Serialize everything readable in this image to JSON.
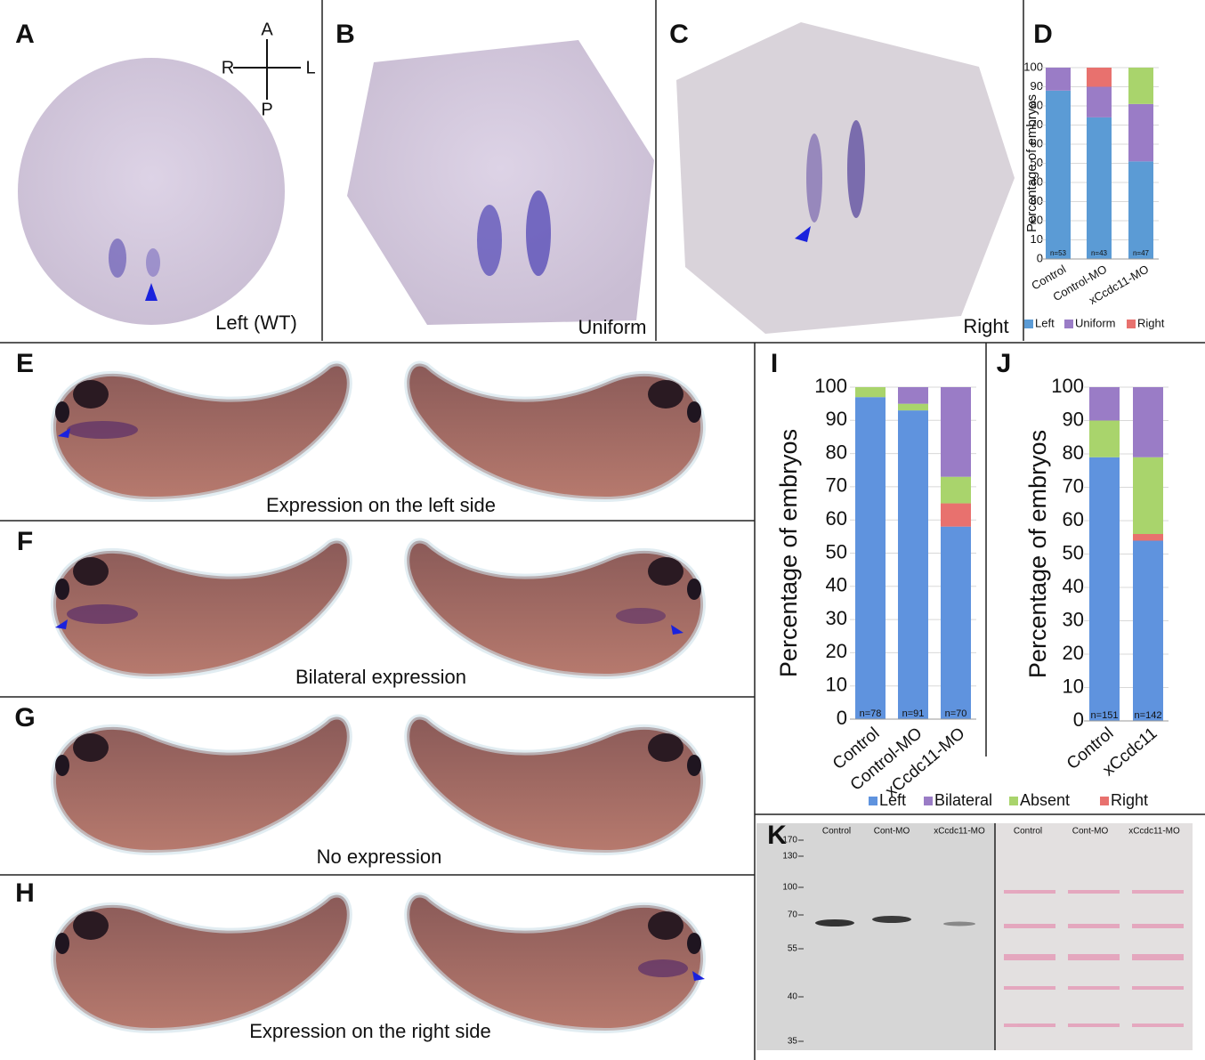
{
  "panels": [
    {
      "letter": "A",
      "caption": "Left (WT)",
      "axes": {
        "a": "A",
        "p": "P",
        "r": "R",
        "l": "L"
      }
    },
    {
      "letter": "B",
      "caption": "Uniform"
    },
    {
      "letter": "C",
      "caption": "Right"
    },
    {
      "letter": "D"
    },
    {
      "letter": "E",
      "caption": "Expression on the left side"
    },
    {
      "letter": "F",
      "caption": "Bilateral expression"
    },
    {
      "letter": "G",
      "caption": "No expression"
    },
    {
      "letter": "H",
      "caption": "Expression on the right side"
    },
    {
      "letter": "I"
    },
    {
      "letter": "J"
    },
    {
      "letter": "K"
    }
  ],
  "blot": {
    "lanes": [
      "Control",
      "Cont-MO",
      "xCcdc11-MO",
      "Control",
      "Cont-MO",
      "xCcdc11-MO"
    ],
    "markers": [
      170,
      130,
      100,
      70,
      55,
      40,
      35
    ]
  },
  "chart_data": [
    {
      "type": "bar",
      "stacked": true,
      "y_label": "Percentage of embryos",
      "categories": [
        "Control",
        "Control-MO",
        "xCcdc11-MO"
      ],
      "series": [
        {
          "name": "Left",
          "color": "#5b9bd5",
          "values": [
            88,
            74,
            51
          ]
        },
        {
          "name": "Uniform",
          "color": "#9a7cc6",
          "values": [
            12,
            16,
            30
          ]
        },
        {
          "name": "Right",
          "color": "#e8716e",
          "values": [
            0,
            10,
            0
          ]
        },
        {
          "color": "#a9d46c",
          "values": [
            0,
            0,
            19
          ]
        }
      ],
      "n_labels": [
        "n=53",
        "n=43",
        "n=47"
      ],
      "ylim": [
        0,
        100
      ],
      "yticks": [
        0,
        10,
        20,
        30,
        40,
        50,
        60,
        70,
        80,
        90,
        100
      ],
      "legend": "bottom"
    },
    {
      "type": "bar",
      "stacked": true,
      "y_label": "Percentage of embryos",
      "categories": [
        "Control",
        "Control-MO",
        "xCcdc11-MO"
      ],
      "series": [
        {
          "name": "Left",
          "color": "#5f93de",
          "values": [
            97,
            93,
            58
          ]
        },
        {
          "name": "Right",
          "color": "#e8716e",
          "values": [
            0,
            0,
            7
          ]
        },
        {
          "name": "Absent",
          "color": "#a9d46c",
          "values": [
            3,
            2,
            8
          ]
        },
        {
          "name": "Bilateral",
          "color": "#9a7cc6",
          "values": [
            0,
            5,
            27
          ]
        }
      ],
      "legend_order": [
        0,
        3,
        2,
        1
      ],
      "n_labels": [
        "n=78",
        "n=91",
        "n=70"
      ],
      "ylim": [
        0,
        100
      ],
      "yticks": [
        0,
        10,
        20,
        30,
        40,
        50,
        60,
        70,
        80,
        90,
        100
      ],
      "legend": "bottom"
    },
    {
      "type": "bar",
      "stacked": true,
      "y_label": "Percentage of embryos",
      "categories": [
        "Control",
        "xCcdc11"
      ],
      "series": [
        {
          "color": "#5f93de",
          "values": [
            79,
            54
          ]
        },
        {
          "color": "#e8716e",
          "values": [
            0,
            2
          ]
        },
        {
          "color": "#a9d46c",
          "values": [
            11,
            23
          ]
        },
        {
          "color": "#9a7cc6",
          "values": [
            10,
            21
          ]
        }
      ],
      "n_labels": [
        "n=151",
        "n=142"
      ],
      "ylim": [
        0,
        100
      ],
      "yticks": [
        0,
        10,
        20,
        30,
        40,
        50,
        60,
        70,
        80,
        90,
        100
      ]
    }
  ]
}
